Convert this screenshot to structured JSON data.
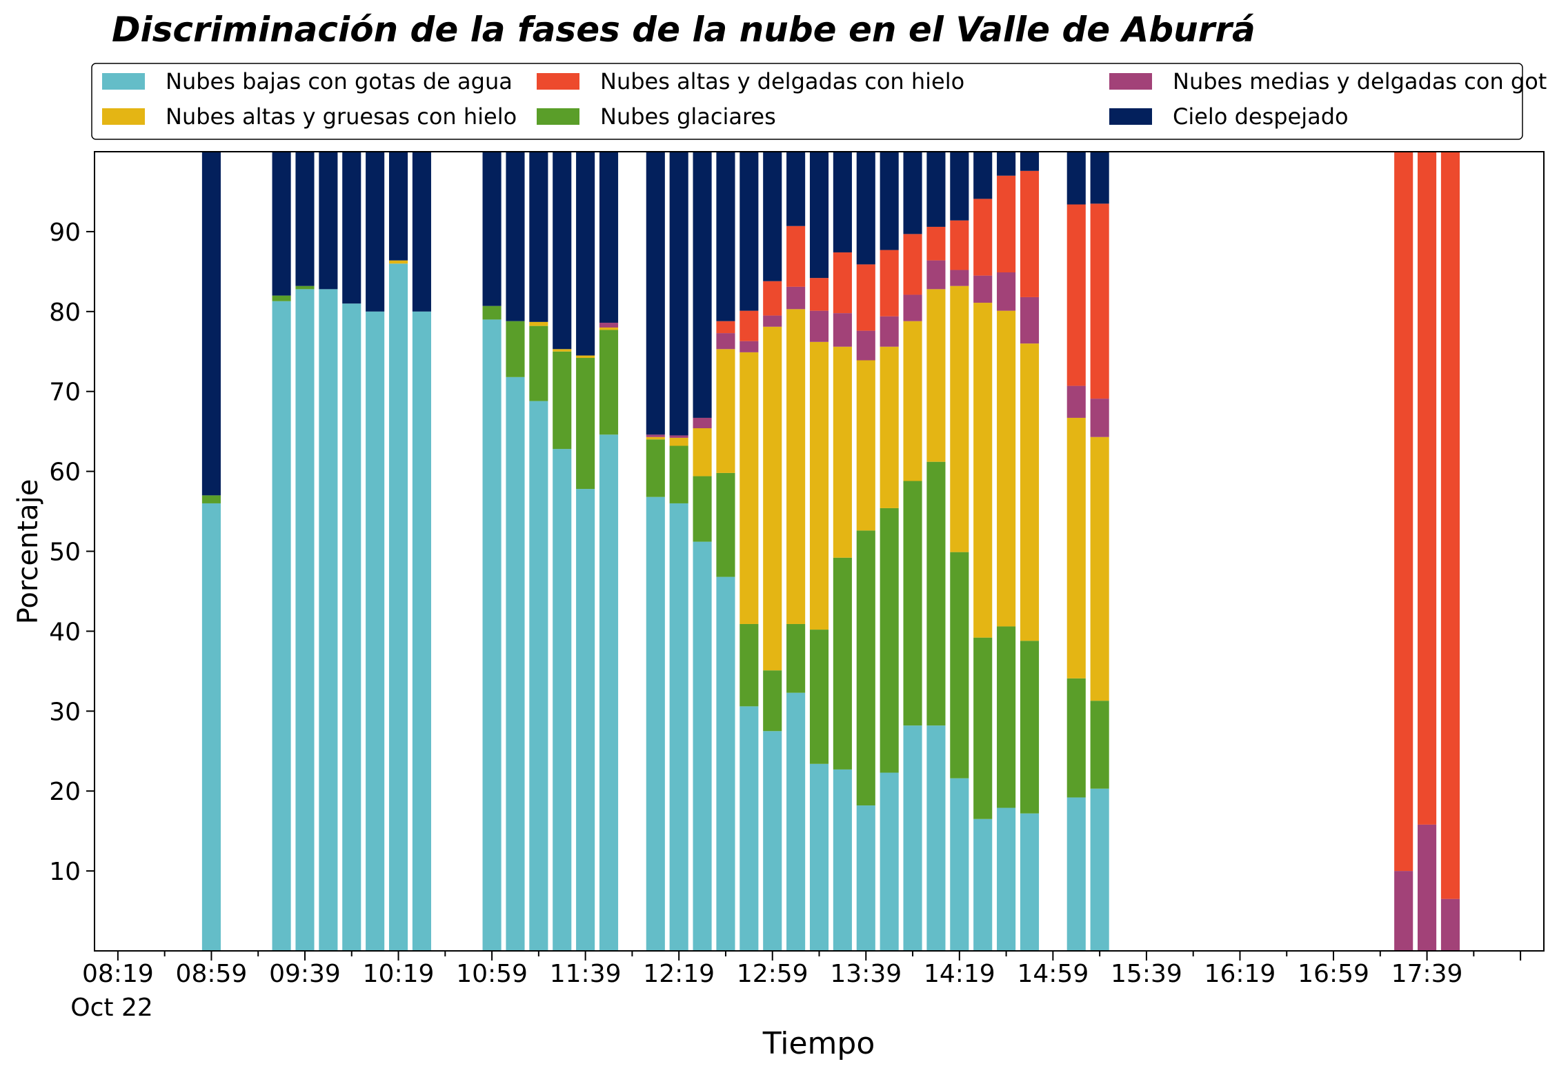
{
  "chart_data": {
    "type": "bar",
    "stacked": true,
    "title": "Discriminación de la fases de la nube en el Valle de Aburrá",
    "xlabel": "Tiempo",
    "ylabel": "Porcentaje",
    "ylim": [
      0,
      100
    ],
    "yticks": [
      10,
      20,
      30,
      40,
      50,
      60,
      70,
      80,
      90
    ],
    "xlim": [
      "08:09",
      "18:29"
    ],
    "bar_width_minutes": 8,
    "xtick_labels": [
      "08:19",
      "08:59",
      "09:39",
      "10:19",
      "10:59",
      "11:39",
      "12:19",
      "12:59",
      "13:39",
      "14:19",
      "14:59",
      "15:39",
      "16:19",
      "16:59",
      "17:39"
    ],
    "xtick_sublabel": "Oct 22",
    "legend_position": "top",
    "series": [
      {
        "name": "Nubes bajas con gotas de agua",
        "color": "#64bdc8"
      },
      {
        "name": "Nubes glaciares",
        "color": "#5a9e29"
      },
      {
        "name": "Nubes altas y gruesas con hielo",
        "color": "#e4b514"
      },
      {
        "name": "Nubes medias y delgadas con gotas de agua",
        "color": "#a24278"
      },
      {
        "name": "Nubes altas y delgadas con hielo",
        "color": "#ed4a2d"
      },
      {
        "name": "Cielo despejado",
        "color": "#03205c"
      }
    ],
    "legend_order": [
      0,
      2,
      4,
      1,
      3,
      5
    ],
    "bars": [
      {
        "time": "08:59",
        "values": [
          56,
          1,
          0,
          0,
          0,
          43
        ]
      },
      {
        "time": "09:29",
        "values": [
          81.3,
          0.7,
          0,
          0,
          0,
          18
        ]
      },
      {
        "time": "09:39",
        "values": [
          82.8,
          0.4,
          0,
          0,
          0,
          16.8
        ]
      },
      {
        "time": "09:49",
        "values": [
          82.8,
          0,
          0,
          0,
          0,
          17.2
        ]
      },
      {
        "time": "09:59",
        "values": [
          81,
          0,
          0,
          0,
          0,
          19
        ]
      },
      {
        "time": "10:09",
        "values": [
          80,
          0,
          0,
          0,
          0,
          20
        ]
      },
      {
        "time": "10:19",
        "values": [
          86,
          0,
          0.4,
          0,
          0,
          13.6
        ]
      },
      {
        "time": "10:29",
        "values": [
          80,
          0,
          0,
          0,
          0,
          20
        ]
      },
      {
        "time": "10:59",
        "values": [
          79,
          1.7,
          0,
          0,
          0,
          19.3
        ]
      },
      {
        "time": "11:09",
        "values": [
          71.8,
          7,
          0,
          0,
          0,
          21.2
        ]
      },
      {
        "time": "11:19",
        "values": [
          68.8,
          9.4,
          0.5,
          0,
          0,
          21.3
        ]
      },
      {
        "time": "11:29",
        "values": [
          62.8,
          12.2,
          0.3,
          0,
          0,
          24.7
        ]
      },
      {
        "time": "11:39",
        "values": [
          57.8,
          16.4,
          0.3,
          0,
          0,
          25.5
        ]
      },
      {
        "time": "11:49",
        "values": [
          64.6,
          13.1,
          0.3,
          0.6,
          0,
          21.4
        ]
      },
      {
        "time": "12:09",
        "values": [
          56.8,
          7.2,
          0.3,
          0.3,
          0,
          35.4
        ]
      },
      {
        "time": "12:19",
        "values": [
          56,
          7.2,
          1,
          0.3,
          0,
          35.5
        ]
      },
      {
        "time": "12:29",
        "values": [
          51.2,
          8.2,
          6,
          1.3,
          0,
          33.3
        ]
      },
      {
        "time": "12:39",
        "values": [
          46.8,
          13,
          15.5,
          2,
          1.5,
          21.2
        ]
      },
      {
        "time": "12:49",
        "values": [
          30.6,
          10.3,
          34,
          1.4,
          3.8,
          19.9
        ]
      },
      {
        "time": "12:59",
        "values": [
          27.5,
          7.6,
          43,
          1.4,
          4.3,
          16.2
        ]
      },
      {
        "time": "13:09",
        "values": [
          32.3,
          8.6,
          39.4,
          2.8,
          7.6,
          9.3
        ]
      },
      {
        "time": "13:19",
        "values": [
          23.4,
          16.8,
          36,
          3.9,
          4.1,
          15.8
        ]
      },
      {
        "time": "13:29",
        "values": [
          22.7,
          26.5,
          26.4,
          4.2,
          7.6,
          12.6
        ]
      },
      {
        "time": "13:39",
        "values": [
          18.2,
          34.4,
          21.3,
          3.7,
          8.3,
          14.1
        ]
      },
      {
        "time": "13:49",
        "values": [
          22.3,
          33.1,
          20.2,
          3.8,
          8.3,
          12.3
        ]
      },
      {
        "time": "13:59",
        "values": [
          28.2,
          30.6,
          20,
          3.3,
          7.6,
          10.3
        ]
      },
      {
        "time": "14:09",
        "values": [
          28.2,
          33,
          21.6,
          3.6,
          4.2,
          9.4
        ]
      },
      {
        "time": "14:19",
        "values": [
          21.6,
          28.3,
          33.3,
          2,
          6.2,
          8.6
        ]
      },
      {
        "time": "14:29",
        "values": [
          16.5,
          22.7,
          41.9,
          3.4,
          9.6,
          5.9
        ]
      },
      {
        "time": "14:39",
        "values": [
          17.9,
          22.7,
          39.5,
          4.8,
          12.1,
          3
        ]
      },
      {
        "time": "14:49",
        "values": [
          17.2,
          21.6,
          37.2,
          5.8,
          15.8,
          2.4
        ]
      },
      {
        "time": "15:09",
        "values": [
          19.2,
          14.9,
          32.6,
          4,
          22.7,
          6.6
        ]
      },
      {
        "time": "15:19",
        "values": [
          20.3,
          11,
          33,
          4.8,
          24.4,
          6.5
        ]
      },
      {
        "time": "17:29",
        "values": [
          0,
          0,
          0,
          10,
          90,
          0
        ]
      },
      {
        "time": "17:39",
        "values": [
          0,
          0,
          0,
          15.8,
          84.2,
          0
        ]
      },
      {
        "time": "17:49",
        "values": [
          0,
          0,
          0,
          6.5,
          93.5,
          0
        ]
      }
    ]
  }
}
